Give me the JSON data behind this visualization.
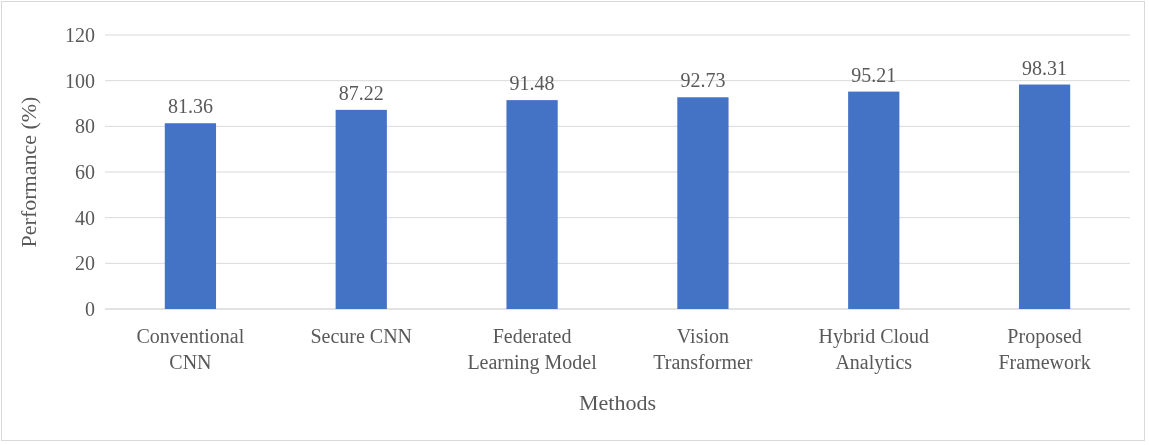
{
  "chart_data": {
    "type": "bar",
    "xlabel": "Methods",
    "ylabel": "Performance (%)",
    "categories": [
      "Conventional CNN",
      "Secure CNN",
      "Federated Learning Model",
      "Vision Transformer",
      "Hybrid Cloud Analytics",
      "Proposed Framework"
    ],
    "values": [
      81.36,
      87.22,
      91.48,
      92.73,
      95.21,
      98.31
    ],
    "color": "#4472c4",
    "ylim": [
      0,
      120
    ],
    "yticks": [
      0,
      20,
      40,
      60,
      80,
      100,
      120
    ],
    "grid": "y",
    "data_labels": true
  }
}
